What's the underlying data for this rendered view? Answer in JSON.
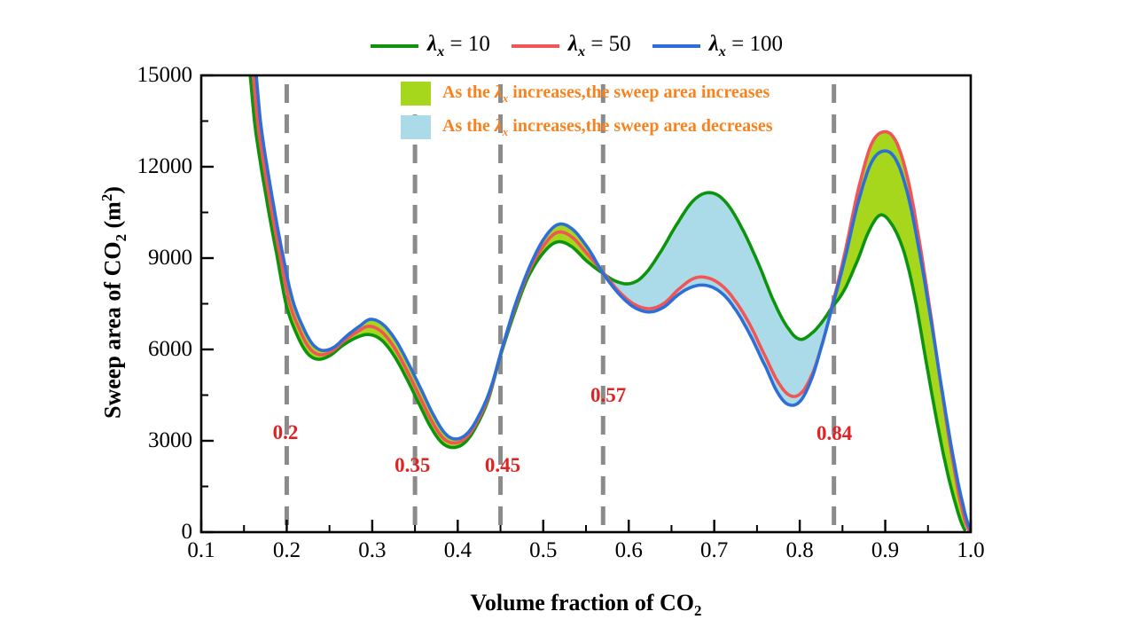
{
  "colors": {
    "green_line": "#0c940c",
    "red_line": "#f25555",
    "blue_line": "#2d6fd6",
    "increase_fill": "#a7d71c",
    "decrease_fill": "#abdbe9",
    "dashed_line": "#8b8b8b",
    "red_label": "#e02222",
    "orange_text": "#f6831f",
    "axis": "#000000"
  },
  "legend": {
    "items": [
      {
        "sym": "λ",
        "sub": "x",
        "rest": " = 10",
        "color": "#0c940c"
      },
      {
        "sym": "λ",
        "sub": "x",
        "rest": " = 50",
        "color": "#f25555"
      },
      {
        "sym": "λ",
        "sub": "x",
        "rest": " = 100",
        "color": "#2d6fd6"
      }
    ]
  },
  "annotations": {
    "items": [
      {
        "swatch": "#a7d71c",
        "pre": "As the ",
        "sym": "λ",
        "sub": "x",
        "post": " increases,the sweep area increases"
      },
      {
        "swatch": "#abdbe9",
        "pre": "As the ",
        "sym": "λ",
        "sub": "x",
        "post": " increases,the sweep area decreases"
      }
    ]
  },
  "chart_data": {
    "type": "line",
    "title": "",
    "xlabel": {
      "pre": "Volume fraction of CO",
      "sub": "2"
    },
    "ylabel": {
      "pre": "Sweep area of CO",
      "sub": "2",
      "mid": "  (m",
      "sup": "2",
      "post": ")"
    },
    "xlim": [
      0.1,
      1.0
    ],
    "ylim": [
      0,
      15000
    ],
    "grid": false,
    "legend_position": "top-center",
    "x_major_ticks": [
      0.1,
      0.2,
      0.3,
      0.4,
      0.5,
      0.6,
      0.7,
      0.8,
      0.9,
      1.0
    ],
    "x_tick_labels": [
      "0.1",
      "0.2",
      "0.3",
      "0.4",
      "0.5",
      "0.6",
      "0.7",
      "0.8",
      "0.9",
      "1.0"
    ],
    "x_minor_ticks": [
      0.15,
      0.25,
      0.35,
      0.45,
      0.55,
      0.65,
      0.75,
      0.85,
      0.95
    ],
    "y_major_ticks": [
      0,
      3000,
      6000,
      9000,
      12000,
      15000
    ],
    "y_tick_labels": [
      "0",
      "3000",
      "6000",
      "9000",
      "12000",
      "15000"
    ],
    "y_minor_ticks": [
      1500,
      4500,
      7500,
      10500,
      13500
    ],
    "dashed_lines": [
      {
        "x": 0.2,
        "label": "0.2",
        "label_x": 0.1985,
        "label_y": 3260
      },
      {
        "x": 0.35,
        "label": "0.35",
        "label_x": 0.347,
        "label_y": 2180
      },
      {
        "x": 0.45,
        "label": "0.45",
        "label_x": 0.4525,
        "label_y": 2180
      },
      {
        "x": 0.57,
        "label": "0.57",
        "label_x": 0.576,
        "label_y": 4480
      },
      {
        "x": 0.84,
        "label": "0.84",
        "label_x": 0.8405,
        "label_y": 3230
      }
    ],
    "series": [
      {
        "name": "λx = 10",
        "color": "#0c940c",
        "points": [
          [
            0.152,
            16300
          ],
          [
            0.163,
            13300
          ],
          [
            0.176,
            11000
          ],
          [
            0.1885,
            9100
          ],
          [
            0.1995,
            7450
          ],
          [
            0.212,
            6480
          ],
          [
            0.224,
            5880
          ],
          [
            0.236,
            5680
          ],
          [
            0.25,
            5790
          ],
          [
            0.265,
            6120
          ],
          [
            0.28,
            6370
          ],
          [
            0.295,
            6490
          ],
          [
            0.31,
            6330
          ],
          [
            0.325,
            5820
          ],
          [
            0.34,
            5060
          ],
          [
            0.355,
            4200
          ],
          [
            0.37,
            3380
          ],
          [
            0.383,
            2900
          ],
          [
            0.396,
            2780
          ],
          [
            0.409,
            2960
          ],
          [
            0.422,
            3500
          ],
          [
            0.436,
            4380
          ],
          [
            0.45,
            5800
          ],
          [
            0.465,
            7100
          ],
          [
            0.481,
            8300
          ],
          [
            0.498,
            9100
          ],
          [
            0.515,
            9520
          ],
          [
            0.532,
            9400
          ],
          [
            0.551,
            8900
          ],
          [
            0.57,
            8500
          ],
          [
            0.585,
            8240
          ],
          [
            0.601,
            8160
          ],
          [
            0.617,
            8420
          ],
          [
            0.636,
            9150
          ],
          [
            0.656,
            10100
          ],
          [
            0.676,
            10900
          ],
          [
            0.695,
            11150
          ],
          [
            0.713,
            10850
          ],
          [
            0.732,
            10000
          ],
          [
            0.752,
            8800
          ],
          [
            0.771,
            7500
          ],
          [
            0.788,
            6640
          ],
          [
            0.801,
            6330
          ],
          [
            0.815,
            6550
          ],
          [
            0.826,
            6900
          ],
          [
            0.8375,
            7380
          ],
          [
            0.852,
            7950
          ],
          [
            0.868,
            8950
          ],
          [
            0.882,
            9950
          ],
          [
            0.895,
            10420
          ],
          [
            0.909,
            10050
          ],
          [
            0.922,
            9200
          ],
          [
            0.934,
            7800
          ],
          [
            0.946,
            5900
          ],
          [
            0.958,
            4000
          ],
          [
            0.97,
            2300
          ],
          [
            0.982,
            950
          ],
          [
            0.993,
            80
          ]
        ]
      },
      {
        "name": "λx = 50",
        "color": "#f25555",
        "points": [
          [
            0.1555,
            16300
          ],
          [
            0.1665,
            13300
          ],
          [
            0.1795,
            11000
          ],
          [
            0.192,
            9100
          ],
          [
            0.203,
            7550
          ],
          [
            0.215,
            6650
          ],
          [
            0.2265,
            6050
          ],
          [
            0.238,
            5830
          ],
          [
            0.252,
            5930
          ],
          [
            0.267,
            6280
          ],
          [
            0.282,
            6570
          ],
          [
            0.296,
            6760
          ],
          [
            0.311,
            6580
          ],
          [
            0.326,
            6050
          ],
          [
            0.341,
            5280
          ],
          [
            0.356,
            4420
          ],
          [
            0.371,
            3580
          ],
          [
            0.384,
            3060
          ],
          [
            0.397,
            2930
          ],
          [
            0.41,
            3110
          ],
          [
            0.423,
            3650
          ],
          [
            0.437,
            4530
          ],
          [
            0.451,
            5950
          ],
          [
            0.466,
            7300
          ],
          [
            0.482,
            8500
          ],
          [
            0.499,
            9350
          ],
          [
            0.516,
            9840
          ],
          [
            0.533,
            9700
          ],
          [
            0.552,
            9120
          ],
          [
            0.57,
            8530
          ],
          [
            0.588,
            7920
          ],
          [
            0.606,
            7490
          ],
          [
            0.624,
            7340
          ],
          [
            0.641,
            7510
          ],
          [
            0.659,
            7990
          ],
          [
            0.676,
            8330
          ],
          [
            0.691,
            8360
          ],
          [
            0.707,
            8140
          ],
          [
            0.723,
            7650
          ],
          [
            0.742,
            6800
          ],
          [
            0.761,
            5700
          ],
          [
            0.777,
            4830
          ],
          [
            0.791,
            4460
          ],
          [
            0.804,
            4640
          ],
          [
            0.817,
            5350
          ],
          [
            0.828,
            6350
          ],
          [
            0.8375,
            7430
          ],
          [
            0.853,
            9200
          ],
          [
            0.868,
            11200
          ],
          [
            0.884,
            12750
          ],
          [
            0.9,
            13150
          ],
          [
            0.914,
            12750
          ],
          [
            0.928,
            11400
          ],
          [
            0.942,
            9200
          ],
          [
            0.955,
            6800
          ],
          [
            0.968,
            4300
          ],
          [
            0.98,
            2200
          ],
          [
            0.99,
            750
          ],
          [
            0.998,
            60
          ]
        ]
      },
      {
        "name": "λx = 100",
        "color": "#2d6fd6",
        "points": [
          [
            0.159,
            16300
          ],
          [
            0.17,
            13300
          ],
          [
            0.183,
            11000
          ],
          [
            0.1955,
            9100
          ],
          [
            0.2065,
            7660
          ],
          [
            0.218,
            6800
          ],
          [
            0.2295,
            6200
          ],
          [
            0.241,
            5970
          ],
          [
            0.255,
            6070
          ],
          [
            0.27,
            6440
          ],
          [
            0.285,
            6760
          ],
          [
            0.298,
            6990
          ],
          [
            0.313,
            6810
          ],
          [
            0.328,
            6280
          ],
          [
            0.343,
            5500
          ],
          [
            0.358,
            4640
          ],
          [
            0.373,
            3780
          ],
          [
            0.386,
            3220
          ],
          [
            0.398,
            3060
          ],
          [
            0.411,
            3240
          ],
          [
            0.424,
            3790
          ],
          [
            0.438,
            4680
          ],
          [
            0.452,
            6050
          ],
          [
            0.467,
            7450
          ],
          [
            0.483,
            8650
          ],
          [
            0.5,
            9600
          ],
          [
            0.517,
            10100
          ],
          [
            0.534,
            9950
          ],
          [
            0.553,
            9300
          ],
          [
            0.57,
            8500
          ],
          [
            0.588,
            7840
          ],
          [
            0.606,
            7390
          ],
          [
            0.624,
            7230
          ],
          [
            0.641,
            7390
          ],
          [
            0.659,
            7820
          ],
          [
            0.676,
            8070
          ],
          [
            0.691,
            8100
          ],
          [
            0.707,
            7890
          ],
          [
            0.723,
            7380
          ],
          [
            0.742,
            6480
          ],
          [
            0.761,
            5380
          ],
          [
            0.776,
            4500
          ],
          [
            0.789,
            4170
          ],
          [
            0.802,
            4350
          ],
          [
            0.815,
            5120
          ],
          [
            0.827,
            6250
          ],
          [
            0.8375,
            7380
          ],
          [
            0.853,
            9000
          ],
          [
            0.868,
            10800
          ],
          [
            0.884,
            12150
          ],
          [
            0.9,
            12520
          ],
          [
            0.914,
            12150
          ],
          [
            0.928,
            10900
          ],
          [
            0.942,
            8900
          ],
          [
            0.955,
            6700
          ],
          [
            0.968,
            4400
          ],
          [
            0.98,
            2400
          ],
          [
            0.991,
            900
          ],
          [
            1.0,
            60
          ]
        ]
      }
    ],
    "bands": [
      {
        "x0": 0.2,
        "x1": 0.57,
        "upper": 2,
        "lower": 0,
        "color": "#a7d71c"
      },
      {
        "x0": 0.57,
        "x1": 0.8375,
        "upper": 0,
        "lower": 2,
        "color": "#abdbe9"
      },
      {
        "x0": 0.8375,
        "x1": 0.993,
        "upper": 1,
        "lower": 0,
        "color": "#a7d71c"
      }
    ]
  }
}
